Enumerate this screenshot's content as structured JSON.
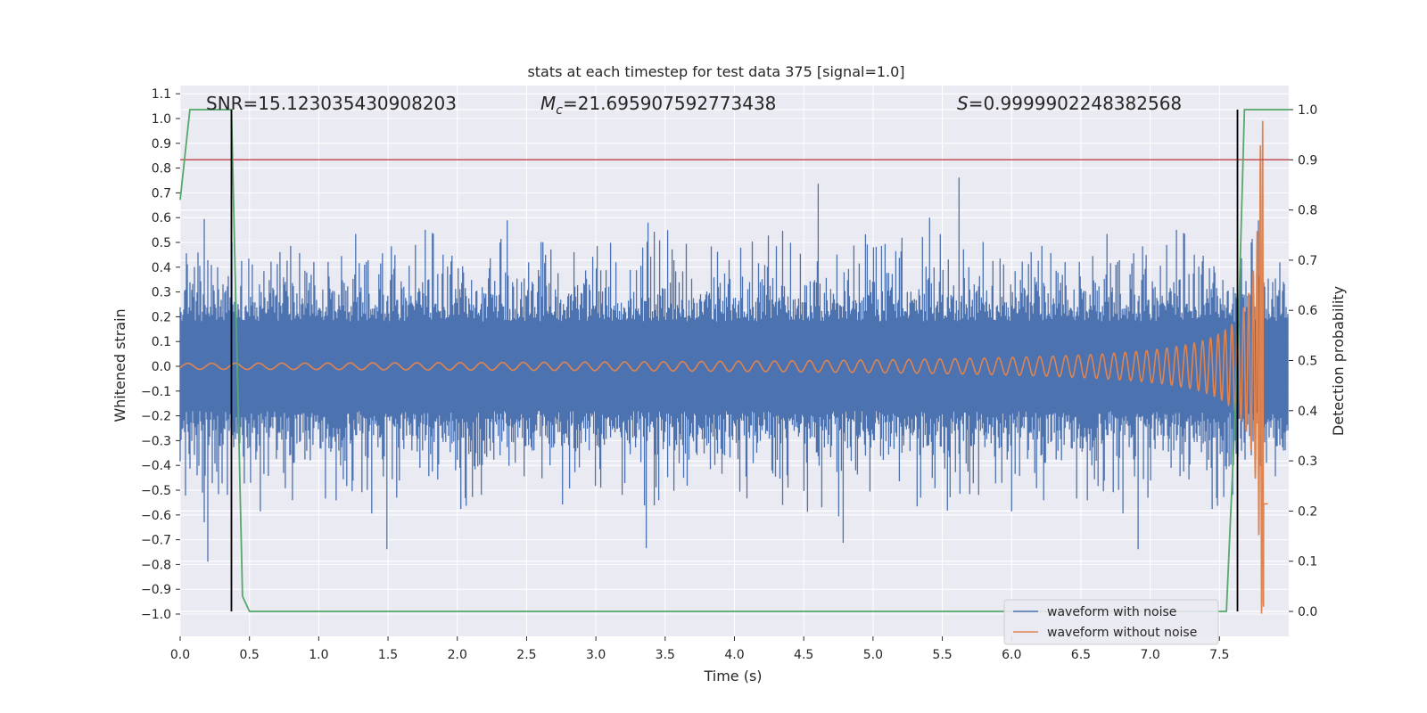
{
  "chart_data": {
    "type": "line",
    "title": "stats at each timestep for test data 375 [signal=1.0]",
    "xlabel": "Time (s)",
    "ylabel": "Whitened strain",
    "y2label": "Detection probability",
    "xlim": [
      0.0,
      8.0
    ],
    "ylim": [
      -1.1,
      1.1
    ],
    "y2lim": [
      -0.05,
      1.02
    ],
    "x_ticks": [
      "0.0",
      "0.5",
      "1.0",
      "1.5",
      "2.0",
      "2.5",
      "3.0",
      "3.5",
      "4.0",
      "4.5",
      "5.0",
      "5.5",
      "6.0",
      "6.5",
      "7.0",
      "7.5"
    ],
    "y_ticks": [
      "−1.0",
      "−0.9",
      "−0.8",
      "−0.7",
      "−0.6",
      "−0.5",
      "−0.4",
      "−0.3",
      "−0.2",
      "−0.1",
      "0.0",
      "0.1",
      "0.2",
      "0.3",
      "0.4",
      "0.5",
      "0.6",
      "0.7",
      "0.8",
      "0.9",
      "1.0",
      "1.1"
    ],
    "y2_ticks": [
      "0.0",
      "0.1",
      "0.2",
      "0.3",
      "0.4",
      "0.5",
      "0.6",
      "0.7",
      "0.8",
      "0.9",
      "1.0"
    ],
    "grid": true,
    "stats": {
      "snr": "SNR=15.123035430908203",
      "mc_symbol": "M",
      "mc_sub": "c",
      "mc_value": "=21.695907592773438",
      "s_symbol": "S",
      "s_value": "=0.9999902248382568"
    },
    "legend": {
      "placement": "lower-right",
      "entries": [
        "waveform with noise",
        "waveform without noise"
      ]
    },
    "colors": {
      "noise": "#4c72b0",
      "clean": "#dd8452",
      "probability": "#55a868",
      "threshold": "#c44e52",
      "markers": "#000000",
      "axes_bg": "#eaeaf2",
      "grid": "#ffffff"
    },
    "series": [
      {
        "name": "waveform with noise",
        "kind": "noisy strain",
        "axis": "left",
        "color": "#4c72b0",
        "x_range": [
          0.0,
          8.0
        ],
        "envelope": [
          0.4,
          0.8
        ]
      },
      {
        "name": "waveform without noise",
        "kind": "chirp",
        "axis": "left",
        "color": "#dd8452",
        "x_range": [
          0.0,
          7.85
        ],
        "peak_time": 7.82,
        "peak_amplitude": 1.0
      },
      {
        "name": "detection probability",
        "axis": "right",
        "color": "#55a868",
        "x": [
          0.0,
          0.07,
          0.1,
          0.37,
          0.45,
          0.5,
          7.55,
          7.63,
          7.68,
          8.0
        ],
        "y": [
          0.82,
          1.0,
          1.0,
          1.0,
          0.03,
          0.0,
          0.0,
          0.5,
          1.0,
          1.0
        ]
      }
    ],
    "threshold": {
      "axis": "right",
      "value": 0.9
    },
    "vertical_markers": [
      {
        "x": 0.37,
        "y_bottom": 0.0,
        "y_top": 1.0
      },
      {
        "x": 7.63,
        "y_bottom": 0.0,
        "y_top": 1.0
      }
    ]
  }
}
